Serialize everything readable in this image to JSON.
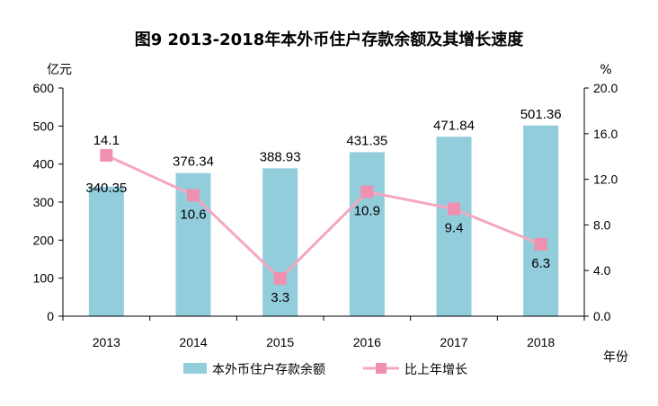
{
  "chart_data": {
    "type": "bar",
    "title": "图9  2013-2018年本外币住户存款余额及其增长速度",
    "categories": [
      "2013",
      "2014",
      "2015",
      "2016",
      "2017",
      "2018"
    ],
    "series": [
      {
        "name": "本外币住户存款余额",
        "type": "bar",
        "axis": "left",
        "values": [
          340.35,
          376.34,
          388.93,
          431.35,
          471.84,
          501.36
        ],
        "labels": [
          "340.35",
          "376.34",
          "388.93",
          "431.35",
          "471.84",
          "501.36"
        ],
        "color": "#92CDDC"
      },
      {
        "name": "比上年增长",
        "type": "line",
        "axis": "right",
        "values": [
          14.1,
          10.6,
          3.3,
          10.9,
          9.4,
          6.3
        ],
        "labels": [
          "14.1",
          "10.6",
          "3.3",
          "10.9",
          "9.4",
          "6.3"
        ],
        "color": "#F4A8BE",
        "marker_color": "#F090B0"
      }
    ],
    "ylabel_left": "亿元",
    "ylabel_right": "%",
    "xlabel": "年份",
    "ylim_left": [
      0,
      600
    ],
    "yticks_left": [
      "0",
      "100",
      "200",
      "300",
      "400",
      "500",
      "600"
    ],
    "ylim_right": [
      0,
      20
    ],
    "yticks_right": [
      "0.0",
      "4.0",
      "8.0",
      "12.0",
      "16.0",
      "20.0"
    ],
    "grid": false,
    "legend": "bottom"
  }
}
